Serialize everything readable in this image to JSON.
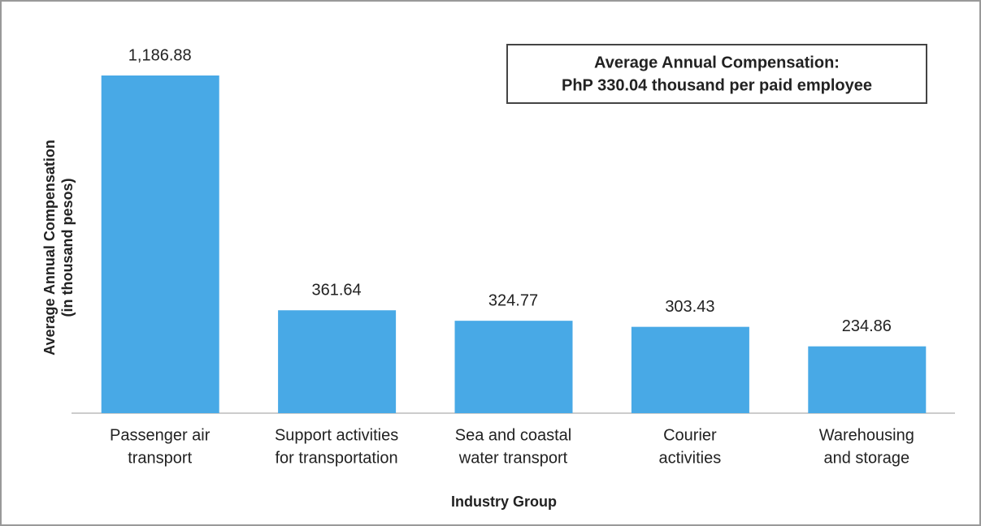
{
  "chart_data": {
    "type": "bar",
    "annotation": [
      "Average Annual Compensation:",
      "PhP 330.04 thousand per paid employee"
    ],
    "xlabel": "Industry  Group",
    "ylabel": [
      "Average Annual Compensation",
      "(in thousand pesos)"
    ],
    "categories": [
      [
        "Passenger air",
        "transport"
      ],
      [
        "Support activities",
        "for transportation"
      ],
      [
        "Sea and coastal",
        "water transport"
      ],
      [
        "Courier",
        "activities"
      ],
      [
        "Warehousing",
        "and storage"
      ]
    ],
    "values": [
      1186.88,
      361.64,
      324.77,
      303.43,
      234.86
    ],
    "value_labels": [
      "1,186.88",
      "361.64",
      "324.77",
      "303.43",
      "234.86"
    ],
    "color": "#48a9e6"
  }
}
